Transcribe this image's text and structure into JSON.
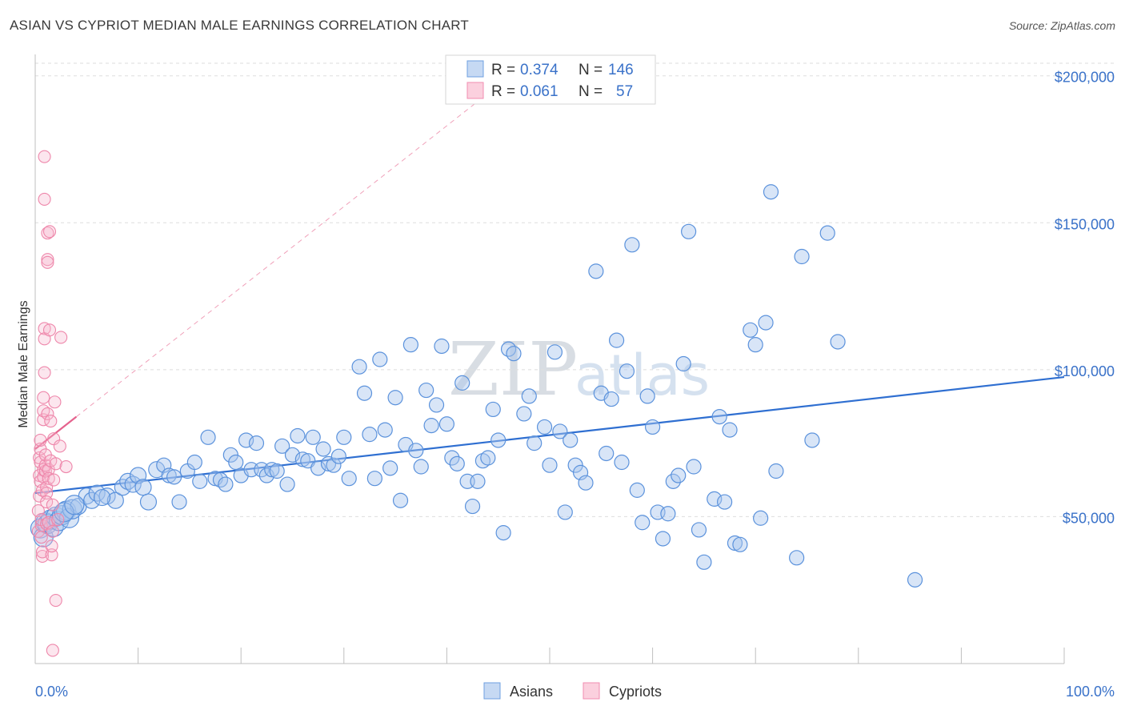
{
  "title": "ASIAN VS CYPRIOT MEDIAN MALE EARNINGS CORRELATION CHART",
  "source": "Source: ZipAtlas.com",
  "watermark": {
    "zip": "ZIP",
    "atlas": "atlas"
  },
  "legend": {
    "rows": [
      {
        "r_label": "R =",
        "r_value": "0.374",
        "n_label": "N =",
        "n_value": "146",
        "color": "#6fa0e0"
      },
      {
        "r_label": "R =",
        "r_value": "0.061",
        "n_label": "N =",
        "n_value": "57",
        "color": "#f08db0"
      }
    ]
  },
  "bottom_legend": {
    "asians": "Asians",
    "cypriots": "Cypriots"
  },
  "chart_data": {
    "type": "scatter",
    "title": "ASIAN VS CYPRIOT MEDIAN MALE EARNINGS CORRELATION CHART",
    "xlabel": "",
    "ylabel": "Median Male Earnings",
    "xlim": [
      0,
      100
    ],
    "ylim": [
      0,
      210000
    ],
    "x_tick_labels": [
      "0.0%",
      "100.0%"
    ],
    "y_tick_values": [
      50000,
      100000,
      150000,
      200000
    ],
    "y_tick_labels": [
      "$50,000",
      "$100,000",
      "$150,000",
      "$200,000"
    ],
    "grid": "horizontal dashed",
    "legend_placement": "top-center",
    "series": [
      {
        "name": "Asians",
        "color": "#6fa0e0",
        "trend": {
          "x": [
            0,
            100
          ],
          "y": [
            58000,
            97500
          ]
        },
        "points": [
          [
            0.5,
            46000
          ],
          [
            0.8,
            43000
          ],
          [
            1.0,
            48000
          ],
          [
            1.2,
            47500
          ],
          [
            1.5,
            49000
          ],
          [
            1.8,
            46500
          ],
          [
            2.0,
            50000
          ],
          [
            2.3,
            48500
          ],
          [
            2.6,
            50500
          ],
          [
            3.0,
            52000
          ],
          [
            3.3,
            49500
          ],
          [
            3.6,
            52500
          ],
          [
            4.2,
            53500
          ],
          [
            5.0,
            57000
          ],
          [
            5.5,
            55500
          ],
          [
            6.0,
            58000
          ],
          [
            7.0,
            57000
          ],
          [
            7.8,
            55500
          ],
          [
            8.5,
            60000
          ],
          [
            9.0,
            62000
          ],
          [
            9.5,
            61000
          ],
          [
            10.0,
            64000
          ],
          [
            10.5,
            60000
          ],
          [
            11.0,
            55000
          ],
          [
            11.8,
            66000
          ],
          [
            12.5,
            67500
          ],
          [
            13.0,
            64000
          ],
          [
            13.5,
            63500
          ],
          [
            14.0,
            55000
          ],
          [
            14.8,
            65500
          ],
          [
            15.5,
            68500
          ],
          [
            16.0,
            62000
          ],
          [
            16.8,
            77000
          ],
          [
            17.5,
            63000
          ],
          [
            18.0,
            62500
          ],
          [
            18.5,
            61000
          ],
          [
            19.0,
            71000
          ],
          [
            19.5,
            68500
          ],
          [
            20.0,
            64000
          ],
          [
            20.5,
            76000
          ],
          [
            21.0,
            66000
          ],
          [
            21.5,
            75000
          ],
          [
            22.0,
            66000
          ],
          [
            22.5,
            64000
          ],
          [
            23.0,
            66000
          ],
          [
            23.5,
            65500
          ],
          [
            24.0,
            74000
          ],
          [
            24.5,
            61000
          ],
          [
            25.0,
            71000
          ],
          [
            25.5,
            77500
          ],
          [
            26.0,
            69500
          ],
          [
            26.5,
            69000
          ],
          [
            27.0,
            77000
          ],
          [
            27.5,
            66500
          ],
          [
            28.0,
            73000
          ],
          [
            28.5,
            68000
          ],
          [
            29.0,
            67500
          ],
          [
            29.5,
            70500
          ],
          [
            30.0,
            77000
          ],
          [
            30.5,
            63000
          ],
          [
            31.5,
            101000
          ],
          [
            32.0,
            92000
          ],
          [
            32.5,
            78000
          ],
          [
            33.0,
            63000
          ],
          [
            33.5,
            103500
          ],
          [
            34.0,
            79500
          ],
          [
            34.5,
            66500
          ],
          [
            35.0,
            90500
          ],
          [
            35.5,
            55500
          ],
          [
            36.0,
            74500
          ],
          [
            36.5,
            108500
          ],
          [
            37.0,
            72500
          ],
          [
            37.5,
            67000
          ],
          [
            38.0,
            93000
          ],
          [
            38.5,
            81000
          ],
          [
            39.0,
            88000
          ],
          [
            39.5,
            108000
          ],
          [
            40.0,
            81500
          ],
          [
            40.5,
            70000
          ],
          [
            41.0,
            68000
          ],
          [
            41.5,
            95500
          ],
          [
            42.0,
            62000
          ],
          [
            42.5,
            53500
          ],
          [
            43.0,
            62000
          ],
          [
            43.5,
            69000
          ],
          [
            44.0,
            70000
          ],
          [
            44.5,
            86500
          ],
          [
            45.0,
            76000
          ],
          [
            45.5,
            44500
          ],
          [
            46.0,
            107000
          ],
          [
            46.5,
            105500
          ],
          [
            47.5,
            85000
          ],
          [
            48.0,
            91000
          ],
          [
            48.5,
            75000
          ],
          [
            49.5,
            80500
          ],
          [
            50.0,
            67500
          ],
          [
            50.5,
            106000
          ],
          [
            51.0,
            79000
          ],
          [
            51.5,
            51500
          ],
          [
            52.0,
            76000
          ],
          [
            52.5,
            67500
          ],
          [
            53.0,
            65000
          ],
          [
            53.5,
            61500
          ],
          [
            54.5,
            133500
          ],
          [
            55.0,
            92000
          ],
          [
            55.5,
            71500
          ],
          [
            56.0,
            90000
          ],
          [
            56.5,
            110000
          ],
          [
            57.0,
            68500
          ],
          [
            57.5,
            99500
          ],
          [
            58.0,
            142500
          ],
          [
            58.5,
            59000
          ],
          [
            59.0,
            48000
          ],
          [
            59.5,
            91000
          ],
          [
            60.0,
            80500
          ],
          [
            60.5,
            51500
          ],
          [
            61.0,
            42500
          ],
          [
            61.5,
            51000
          ],
          [
            62.0,
            62000
          ],
          [
            62.5,
            64000
          ],
          [
            63.0,
            102000
          ],
          [
            63.5,
            147000
          ],
          [
            64.0,
            67000
          ],
          [
            64.5,
            45500
          ],
          [
            65.0,
            34500
          ],
          [
            66.0,
            56000
          ],
          [
            66.5,
            84000
          ],
          [
            67.0,
            55000
          ],
          [
            67.5,
            79500
          ],
          [
            68.0,
            41000
          ],
          [
            68.5,
            40500
          ],
          [
            69.5,
            113500
          ],
          [
            70.0,
            108500
          ],
          [
            70.5,
            49500
          ],
          [
            71.0,
            116000
          ],
          [
            71.5,
            160500
          ],
          [
            72.0,
            65500
          ],
          [
            74.0,
            36000
          ],
          [
            74.5,
            138500
          ],
          [
            75.5,
            76000
          ],
          [
            77.0,
            146500
          ],
          [
            78.0,
            109500
          ],
          [
            85.5,
            28500
          ],
          [
            2.8,
            51500
          ],
          [
            3.8,
            54000
          ],
          [
            6.5,
            56500
          ]
        ]
      },
      {
        "name": "Cypriots",
        "color": "#f08db0",
        "trend": {
          "x": [
            0,
            4
          ],
          "y": [
            73000,
            84000
          ]
        },
        "points": [
          [
            0.3,
            52000
          ],
          [
            0.3,
            45000
          ],
          [
            0.4,
            57000
          ],
          [
            0.4,
            64000
          ],
          [
            0.4,
            70000
          ],
          [
            0.5,
            73000
          ],
          [
            0.5,
            76000
          ],
          [
            0.5,
            68500
          ],
          [
            0.5,
            62000
          ],
          [
            0.6,
            43000
          ],
          [
            0.6,
            47000
          ],
          [
            0.6,
            49000
          ],
          [
            0.7,
            36500
          ],
          [
            0.7,
            38000
          ],
          [
            0.7,
            59000
          ],
          [
            0.8,
            90500
          ],
          [
            0.8,
            83000
          ],
          [
            0.8,
            86000
          ],
          [
            0.8,
            63500
          ],
          [
            0.8,
            66000
          ],
          [
            0.9,
            172500
          ],
          [
            0.9,
            158000
          ],
          [
            0.9,
            114000
          ],
          [
            0.9,
            110500
          ],
          [
            0.9,
            99000
          ],
          [
            1.0,
            65500
          ],
          [
            1.0,
            67500
          ],
          [
            1.0,
            71000
          ],
          [
            1.1,
            60000
          ],
          [
            1.1,
            58000
          ],
          [
            1.1,
            55000
          ],
          [
            1.1,
            47500
          ],
          [
            1.2,
            146500
          ],
          [
            1.2,
            137500
          ],
          [
            1.2,
            136500
          ],
          [
            1.2,
            85000
          ],
          [
            1.3,
            66000
          ],
          [
            1.3,
            63000
          ],
          [
            1.3,
            48000
          ],
          [
            1.4,
            147000
          ],
          [
            1.4,
            113500
          ],
          [
            1.5,
            69000
          ],
          [
            1.5,
            82500
          ],
          [
            1.6,
            37000
          ],
          [
            1.6,
            40000
          ],
          [
            1.7,
            4500
          ],
          [
            1.7,
            54000
          ],
          [
            1.7,
            45000
          ],
          [
            1.8,
            76500
          ],
          [
            1.8,
            62500
          ],
          [
            1.9,
            89000
          ],
          [
            2.0,
            21500
          ],
          [
            2.0,
            68000
          ],
          [
            2.2,
            49000
          ],
          [
            2.4,
            74000
          ],
          [
            2.5,
            111000
          ],
          [
            3.0,
            67000
          ]
        ]
      }
    ]
  }
}
